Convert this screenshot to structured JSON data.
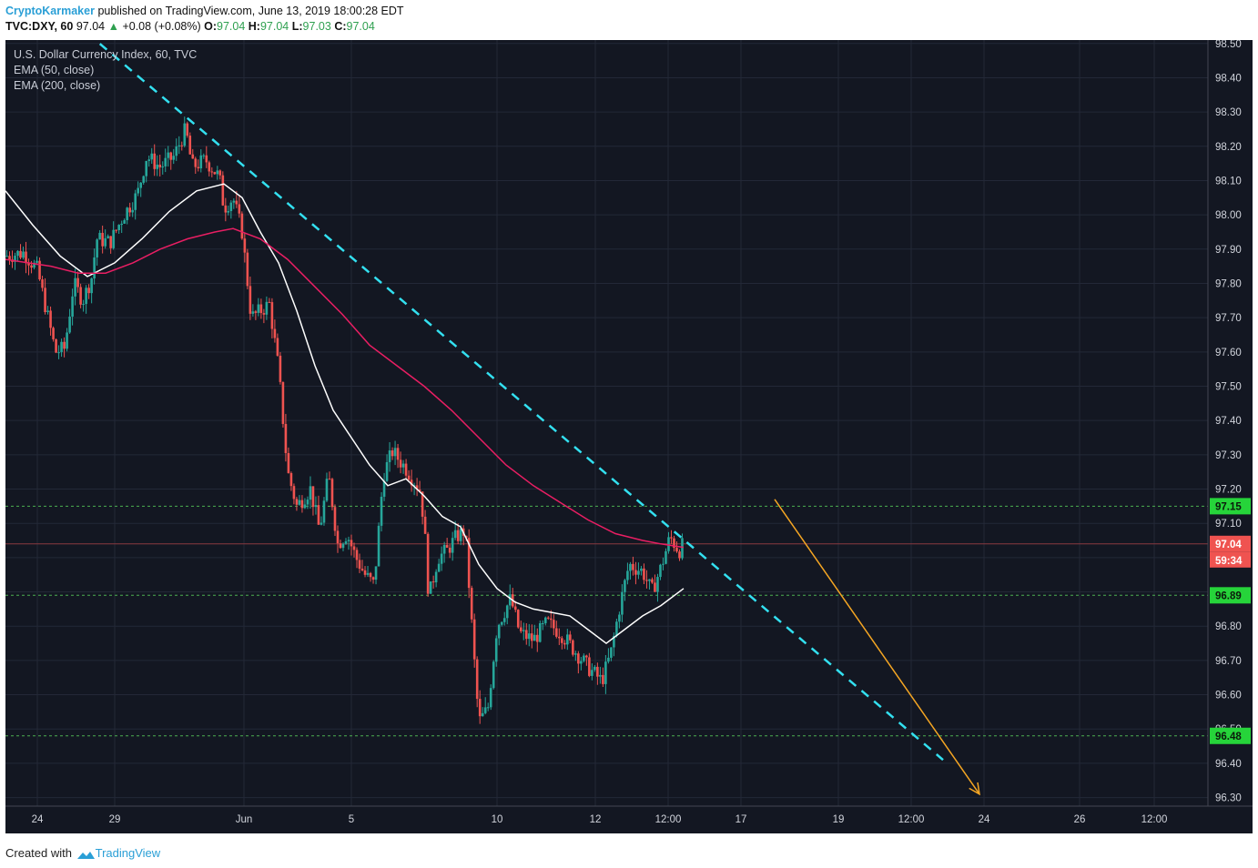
{
  "header": {
    "author": "CryptoKarmaker",
    "published": " published on TradingView.com, June 13, 2019 18:00:28 EDT",
    "symbol": "TVC:DXY, 60",
    "last": "97.04",
    "arrow": "▲",
    "change": "+0.08 (+0.08%)",
    "o_label": "O:",
    "o": "97.04",
    "h_label": "H:",
    "h": "97.04",
    "l_label": "L:",
    "l": "97.03",
    "c_label": "C:",
    "c": "97.04"
  },
  "legend": {
    "title": "U.S. Dollar Currency Index, 60, TVC",
    "ema50": "EMA (50, close)",
    "ema200": "EMA (200, close)"
  },
  "footer": {
    "created": "Created with",
    "brand": "TradingView",
    "logo_icon": "tradingview-cloud-icon"
  },
  "colors": {
    "background": "#131722",
    "grid": "#232837",
    "up": "#26a69a",
    "down": "#ef5350",
    "ema50": "#ffffff",
    "ema200": "#e91e63",
    "trendline": "#33e0f0",
    "projection": "#f5a623",
    "level": "#4caf50",
    "level_tag": "#26d43a",
    "price_tag": "#ef5350"
  },
  "chart_data": {
    "type": "candlestick",
    "title": "U.S. Dollar Currency Index, 60, TVC",
    "ylim": [
      96.275,
      98.51
    ],
    "y_ticks": [
      "98.50",
      "98.40",
      "98.30",
      "98.20",
      "98.10",
      "98.00",
      "97.90",
      "97.80",
      "97.70",
      "97.60",
      "97.50",
      "97.40",
      "97.30",
      "97.20",
      "97.10",
      "97.00",
      "96.90",
      "96.80",
      "96.70",
      "96.60",
      "96.50",
      "96.40",
      "96.30"
    ],
    "x_ticks": [
      {
        "label": "24",
        "t": 0.035
      },
      {
        "label": "29",
        "t": 0.12
      },
      {
        "label": "Jun",
        "t": 0.262
      },
      {
        "label": "5",
        "t": 0.38
      },
      {
        "label": "10",
        "t": 0.54
      },
      {
        "label": "12",
        "t": 0.648
      },
      {
        "label": "12:00",
        "t": 0.728
      },
      {
        "label": "17",
        "t": 0.808
      },
      {
        "label": "19",
        "t": 0.915
      },
      {
        "label": "12:00",
        "t": 0.995
      },
      {
        "label": "24",
        "t": 1.075
      },
      {
        "label": "26",
        "t": 1.18
      },
      {
        "label": "12:00",
        "t": 1.262
      }
    ],
    "price_path": [
      [
        0.0,
        97.88
      ],
      [
        0.02,
        97.89
      ],
      [
        0.035,
        97.84
      ],
      [
        0.045,
        97.72
      ],
      [
        0.055,
        97.6
      ],
      [
        0.065,
        97.61
      ],
      [
        0.075,
        97.8
      ],
      [
        0.085,
        97.75
      ],
      [
        0.095,
        97.82
      ],
      [
        0.1,
        97.93
      ],
      [
        0.115,
        97.92
      ],
      [
        0.13,
        98.0
      ],
      [
        0.145,
        98.06
      ],
      [
        0.155,
        98.17
      ],
      [
        0.17,
        98.14
      ],
      [
        0.185,
        98.17
      ],
      [
        0.198,
        98.25
      ],
      [
        0.205,
        98.14
      ],
      [
        0.22,
        98.16
      ],
      [
        0.235,
        98.11
      ],
      [
        0.24,
        98.02
      ],
      [
        0.25,
        98.05
      ],
      [
        0.26,
        97.95
      ],
      [
        0.27,
        97.7
      ],
      [
        0.28,
        97.72
      ],
      [
        0.29,
        97.74
      ],
      [
        0.3,
        97.55
      ],
      [
        0.31,
        97.25
      ],
      [
        0.32,
        97.15
      ],
      [
        0.335,
        97.2
      ],
      [
        0.345,
        97.08
      ],
      [
        0.355,
        97.24
      ],
      [
        0.365,
        97.04
      ],
      [
        0.375,
        97.07
      ],
      [
        0.385,
        97.0
      ],
      [
        0.395,
        96.95
      ],
      [
        0.405,
        96.92
      ],
      [
        0.415,
        97.24
      ],
      [
        0.425,
        97.31
      ],
      [
        0.44,
        97.26
      ],
      [
        0.455,
        97.2
      ],
      [
        0.46,
        97.1
      ],
      [
        0.465,
        96.88
      ],
      [
        0.475,
        97.0
      ],
      [
        0.485,
        97.02
      ],
      [
        0.495,
        97.06
      ],
      [
        0.505,
        97.08
      ],
      [
        0.515,
        96.7
      ],
      [
        0.52,
        96.52
      ],
      [
        0.53,
        96.56
      ],
      [
        0.54,
        96.8
      ],
      [
        0.555,
        96.88
      ],
      [
        0.565,
        96.78
      ],
      [
        0.58,
        96.76
      ],
      [
        0.595,
        96.81
      ],
      [
        0.61,
        96.78
      ],
      [
        0.625,
        96.73
      ],
      [
        0.64,
        96.68
      ],
      [
        0.655,
        96.64
      ],
      [
        0.665,
        96.72
      ],
      [
        0.675,
        96.86
      ],
      [
        0.685,
        96.98
      ],
      [
        0.7,
        96.96
      ],
      [
        0.71,
        96.9
      ],
      [
        0.72,
        96.97
      ],
      [
        0.73,
        97.06
      ],
      [
        0.74,
        97.02
      ],
      [
        0.745,
        97.04
      ]
    ],
    "series": [
      {
        "name": "EMA (50, close)",
        "points": [
          [
            0.0,
            98.07
          ],
          [
            0.03,
            97.97
          ],
          [
            0.06,
            97.88
          ],
          [
            0.09,
            97.82
          ],
          [
            0.12,
            97.86
          ],
          [
            0.15,
            97.93
          ],
          [
            0.18,
            98.01
          ],
          [
            0.21,
            98.07
          ],
          [
            0.24,
            98.09
          ],
          [
            0.26,
            98.05
          ],
          [
            0.28,
            97.95
          ],
          [
            0.3,
            97.86
          ],
          [
            0.32,
            97.72
          ],
          [
            0.34,
            97.56
          ],
          [
            0.36,
            97.43
          ],
          [
            0.38,
            97.35
          ],
          [
            0.4,
            97.27
          ],
          [
            0.42,
            97.21
          ],
          [
            0.44,
            97.23
          ],
          [
            0.46,
            97.18
          ],
          [
            0.48,
            97.12
          ],
          [
            0.5,
            97.09
          ],
          [
            0.52,
            96.98
          ],
          [
            0.54,
            96.91
          ],
          [
            0.56,
            96.87
          ],
          [
            0.58,
            96.85
          ],
          [
            0.6,
            96.84
          ],
          [
            0.62,
            96.83
          ],
          [
            0.64,
            96.79
          ],
          [
            0.66,
            96.75
          ],
          [
            0.68,
            96.79
          ],
          [
            0.7,
            96.83
          ],
          [
            0.72,
            96.86
          ],
          [
            0.745,
            96.91
          ]
        ]
      },
      {
        "name": "EMA (200, close)",
        "points": [
          [
            0.0,
            97.87
          ],
          [
            0.05,
            97.85
          ],
          [
            0.08,
            97.83
          ],
          [
            0.11,
            97.83
          ],
          [
            0.14,
            97.86
          ],
          [
            0.17,
            97.9
          ],
          [
            0.2,
            97.93
          ],
          [
            0.23,
            97.95
          ],
          [
            0.25,
            97.96
          ],
          [
            0.28,
            97.93
          ],
          [
            0.31,
            97.87
          ],
          [
            0.34,
            97.79
          ],
          [
            0.37,
            97.71
          ],
          [
            0.4,
            97.62
          ],
          [
            0.43,
            97.56
          ],
          [
            0.46,
            97.5
          ],
          [
            0.49,
            97.43
          ],
          [
            0.52,
            97.35
          ],
          [
            0.55,
            97.27
          ],
          [
            0.58,
            97.21
          ],
          [
            0.61,
            97.16
          ],
          [
            0.64,
            97.11
          ],
          [
            0.67,
            97.07
          ],
          [
            0.7,
            97.05
          ],
          [
            0.72,
            97.04
          ],
          [
            0.745,
            97.03
          ]
        ]
      }
    ],
    "trendline": {
      "from": [
        0.09,
        98.53
      ],
      "to": [
        1.03,
        96.41
      ]
    },
    "projection": {
      "from": [
        0.845,
        97.17
      ],
      "to": [
        1.07,
        96.31
      ]
    },
    "levels": [
      {
        "value": 97.15,
        "label": "97.15"
      },
      {
        "value": 96.89,
        "label": "96.89"
      },
      {
        "value": 96.48,
        "label": "96.48"
      }
    ],
    "last_price": {
      "value": 97.04,
      "label": "97.04",
      "countdown": "59:34"
    }
  }
}
